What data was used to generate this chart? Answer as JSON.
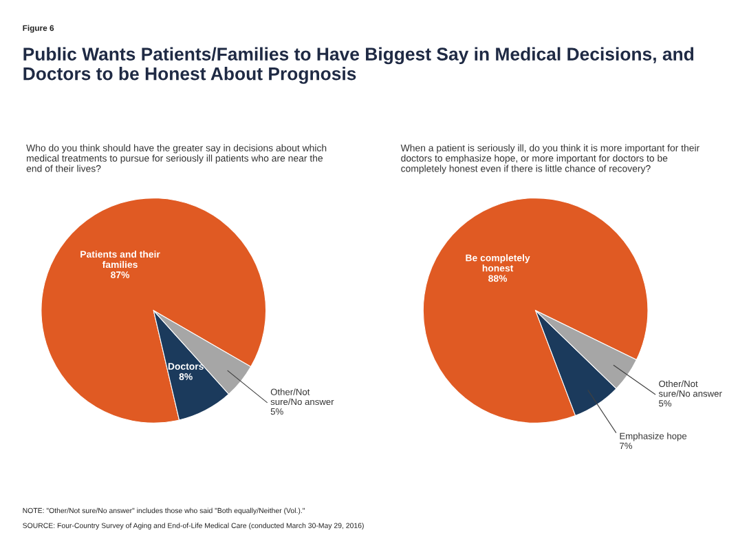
{
  "chart_data": [
    {
      "type": "pie",
      "title": "Public Wants Patients/Families to Have Biggest Say in Medical Decisions, and Doctors to be Honest About Prognosis",
      "subtitle": "Who do you think should have the greater say in decisions about which medical treatments to pursue for seriously ill patients who are near the end of their lives?",
      "categories": [
        "Patients and their families",
        "Doctors",
        "Other/Not sure/No answer"
      ],
      "values": [
        87,
        8,
        5
      ],
      "value_labels": [
        "87%",
        "8%",
        "5%"
      ],
      "colors": [
        "#e05a23",
        "#1b3a5c",
        "#a6a6a6"
      ],
      "annotations": [
        "Figure 6",
        "NOTE: \"Other/Not sure/No answer\" includes those who said \"Both equally/Neither (Vol.).\"",
        "SOURCE: Four-Country Survey of Aging and End-of-Life Medical Care (conducted March 30-May 29, 2016)"
      ]
    },
    {
      "type": "pie",
      "subtitle": "When a patient is seriously ill, do you think it is more important for their doctors to emphasize hope, or more important for doctors to be completely honest even if there is little chance of recovery?",
      "categories": [
        "Be completely honest",
        "Emphasize hope",
        "Other/Not sure/No answer"
      ],
      "values": [
        88,
        7,
        5
      ],
      "value_labels": [
        "88%",
        "7%",
        "5%"
      ],
      "colors": [
        "#e05a23",
        "#1b3a5c",
        "#a6a6a6"
      ]
    }
  ]
}
